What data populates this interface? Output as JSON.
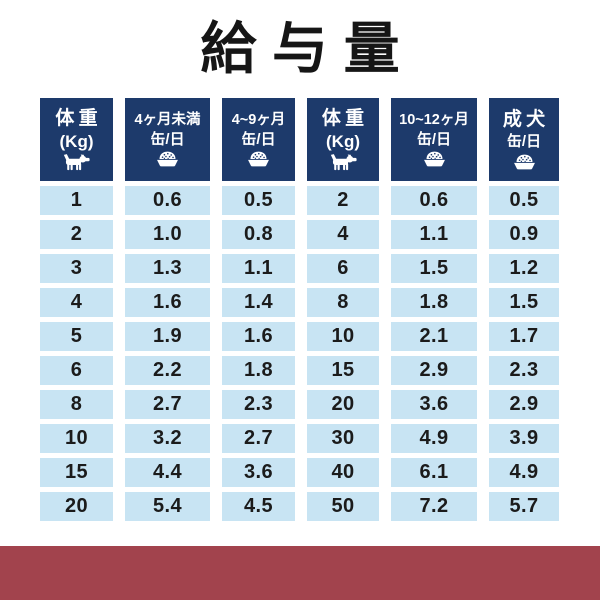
{
  "title": "給与量",
  "colors": {
    "header_navy": "#1d3a6b",
    "cell_blue": "#c8e4f3",
    "footer_red": "#a2434d",
    "title_ink": "#161616"
  },
  "header_cells": [
    {
      "line1": "体重",
      "line2": "(Kg)",
      "icon": "dog-icon"
    },
    {
      "line1": "4ヶ月未満",
      "line2": "缶/日",
      "icon": "bowl-icon"
    },
    {
      "line1": "4~9ヶ月",
      "line2": "缶/日",
      "icon": "bowl-icon"
    },
    {
      "line1": "体重",
      "line2": "(Kg)",
      "icon": "dog-icon"
    },
    {
      "line1": "10~12ヶ月",
      "line2": "缶/日",
      "icon": "bowl-icon"
    },
    {
      "line1": "成犬",
      "line2": "缶/日",
      "icon": "bowl-icon"
    }
  ],
  "chart_data": {
    "type": "table",
    "title": "給与量",
    "columns": [
      "体重(Kg)",
      "4ヶ月未満 缶/日",
      "4~9ヶ月 缶/日",
      "体重(Kg)",
      "10~12ヶ月 缶/日",
      "成犬 缶/日"
    ],
    "rows": [
      [
        "1",
        "0.6",
        "0.5",
        "2",
        "0.6",
        "0.5"
      ],
      [
        "2",
        "1.0",
        "0.8",
        "4",
        "1.1",
        "0.9"
      ],
      [
        "3",
        "1.3",
        "1.1",
        "6",
        "1.5",
        "1.2"
      ],
      [
        "4",
        "1.6",
        "1.4",
        "8",
        "1.8",
        "1.5"
      ],
      [
        "5",
        "1.9",
        "1.6",
        "10",
        "2.1",
        "1.7"
      ],
      [
        "6",
        "2.2",
        "1.8",
        "15",
        "2.9",
        "2.3"
      ],
      [
        "8",
        "2.7",
        "2.3",
        "20",
        "3.6",
        "2.9"
      ],
      [
        "10",
        "3.2",
        "2.7",
        "30",
        "4.9",
        "3.9"
      ],
      [
        "15",
        "4.4",
        "3.6",
        "40",
        "6.1",
        "4.9"
      ],
      [
        "20",
        "5.4",
        "4.5",
        "50",
        "7.2",
        "5.7"
      ]
    ]
  }
}
